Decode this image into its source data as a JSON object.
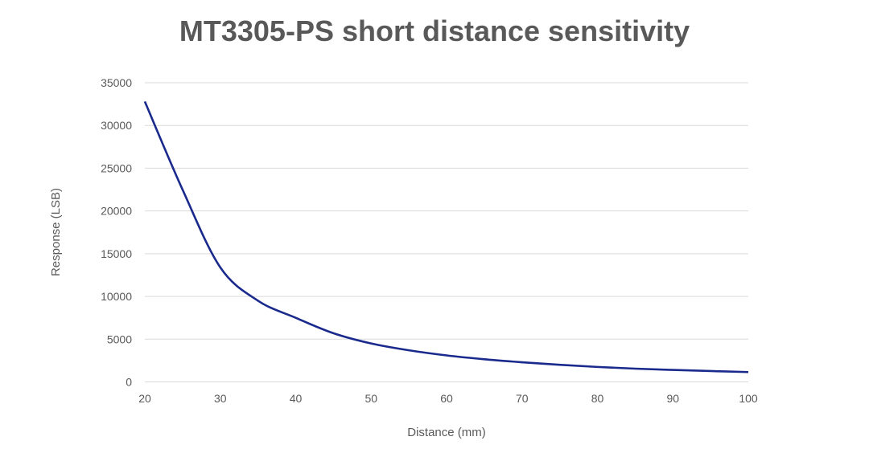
{
  "chart_data": {
    "type": "line",
    "title": "MT3305-PS short distance sensitivity",
    "xlabel": "Distance (mm)",
    "ylabel": "Response (LSB)",
    "xlim": [
      20,
      100
    ],
    "ylim": [
      0,
      35000
    ],
    "xticks": [
      20,
      30,
      40,
      50,
      60,
      70,
      80,
      90,
      100
    ],
    "yticks": [
      0,
      5000,
      10000,
      15000,
      20000,
      25000,
      30000,
      35000
    ],
    "grid": "horizontal",
    "legend": "none",
    "series": [
      {
        "color": "#1a2a8c",
        "x": [
          20,
          25,
          30,
          35,
          40,
          45,
          50,
          55,
          60,
          65,
          70,
          75,
          80,
          85,
          90,
          95,
          100
        ],
        "y": [
          32800,
          22500,
          13400,
          9500,
          7500,
          5700,
          4500,
          3700,
          3100,
          2650,
          2300,
          2000,
          1750,
          1550,
          1400,
          1270,
          1150
        ]
      }
    ]
  }
}
